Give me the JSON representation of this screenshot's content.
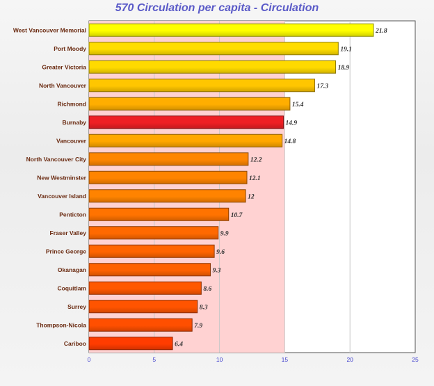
{
  "title": "570 Circulation per capita - Circulation",
  "chart_data": {
    "type": "bar",
    "orientation": "horizontal",
    "title": "570 Circulation per capita - Circulation",
    "xlabel": "",
    "ylabel": "",
    "xlim": [
      0,
      25
    ],
    "ticks": [
      0,
      5,
      10,
      15,
      20,
      25
    ],
    "highlight_band": [
      0,
      15
    ],
    "grid": "vertical",
    "categories": [
      "West Vancouver Memorial",
      "Port Moody",
      "Greater Victoria",
      "North Vancouver",
      "Richmond",
      "Burnaby",
      "Vancouver",
      "North Vancouver City",
      "New Westminster",
      "Vancouver Island",
      "Penticton",
      "Fraser Valley",
      "Prince George",
      "Okanagan",
      "Coquitlam",
      "Surrey",
      "Thompson-Nicola",
      "Cariboo"
    ],
    "values": [
      21.8,
      19.1,
      18.9,
      17.3,
      15.4,
      14.9,
      14.8,
      12.2,
      12.1,
      12,
      10.7,
      9.9,
      9.6,
      9.3,
      8.6,
      8.3,
      7.9,
      6.4
    ],
    "value_labels": [
      "21.8",
      "19.1",
      "18.9",
      "17.3",
      "15.4",
      "14.9",
      "14.8",
      "12.2",
      "12.1",
      "12",
      "10.7",
      "9.9",
      "9.6",
      "9.3",
      "8.6",
      "8.3",
      "7.9",
      "6.4"
    ],
    "highlighted_category": "Burnaby",
    "colors": {
      "highlight": "#ee1f24",
      "band": "#ffd2d2",
      "plot_bg": "#ffffff",
      "gradient_high": "#ffff00",
      "gradient_low": "#ff1a00"
    }
  }
}
